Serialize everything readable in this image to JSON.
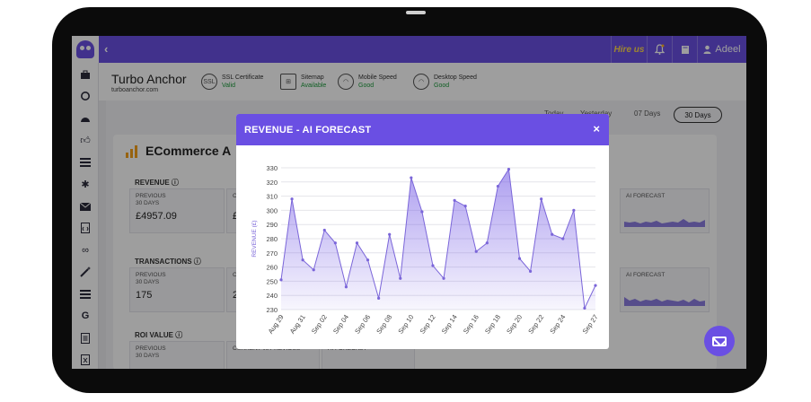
{
  "topbar": {
    "back_icon": "chevron-left",
    "hire_us": "Hire us",
    "bell_icon": "bell",
    "book_icon": "book",
    "user_icon": "user",
    "user_name": "Adeel",
    "accent": "#6a4fe3"
  },
  "sidebar": {
    "icons": [
      "briefcase-icon",
      "refresh-icon",
      "dashboard-icon",
      "thumbs-up-icon",
      "list-icon",
      "plugin-icon",
      "mail-icon",
      "code-file-icon",
      "link-icon",
      "wand-icon",
      "table-icon",
      "google-icon",
      "document-icon",
      "excel-icon"
    ]
  },
  "site": {
    "name": "Turbo Anchor",
    "url": "turboanchor.com",
    "ssl_label": "SSL Certificate",
    "ssl_status": "Valid",
    "sitemap_label": "Sitemap",
    "sitemap_status": "Available",
    "mobile_label": "Mobile Speed",
    "mobile_status": "Good",
    "desktop_label": "Desktop Speed",
    "desktop_status": "Good",
    "status_color": "#1a9a3a"
  },
  "ranges": {
    "d1": "Today",
    "d2": "Yesterday",
    "d3": "07 Days",
    "d4": "30 Days"
  },
  "dashboard": {
    "title": "ECommerce A",
    "revenue_label": "REVENUE",
    "transactions_label": "TRANSACTIONS",
    "roi_label": "ROI VALUE",
    "previous_label_1": "PREVIOUS",
    "previous_label_2": "30 DAYS",
    "current_label": "CURRENT vs PREVIOUS",
    "ai_forecast_label": "AI FORECAST",
    "revenue_previous": "£4957.09",
    "transactions_previous": "175",
    "revenue_current_partial": "£",
    "transactions_current_partial": "2"
  },
  "modal": {
    "title": "REVENUE - AI FORECAST",
    "close": "×"
  },
  "chart_data": {
    "type": "area",
    "title": "",
    "xlabel": "",
    "ylabel": "REVENUE (£)",
    "ylim": [
      230,
      330
    ],
    "yticks": [
      230,
      240,
      250,
      260,
      270,
      280,
      290,
      300,
      310,
      320,
      330
    ],
    "grid": true,
    "tick_labels": [
      "Aug 29",
      "Aug 31",
      "Sep 02",
      "Sep 04",
      "Sep 06",
      "Sep 08",
      "Sep 10",
      "Sep 12",
      "Sep 14",
      "Sep 16",
      "Sep 18",
      "Sep 20",
      "Sep 22",
      "Sep 24",
      "Sep 27"
    ],
    "x": [
      "Aug 29",
      "Aug 30",
      "Aug 31",
      "Sep 01",
      "Sep 02",
      "Sep 03",
      "Sep 04",
      "Sep 05",
      "Sep 06",
      "Sep 07",
      "Sep 08",
      "Sep 09",
      "Sep 10",
      "Sep 11",
      "Sep 12",
      "Sep 13",
      "Sep 14",
      "Sep 15",
      "Sep 16",
      "Sep 17",
      "Sep 18",
      "Sep 19",
      "Sep 20",
      "Sep 21",
      "Sep 22",
      "Sep 23",
      "Sep 24",
      "Sep 25",
      "Sep 26",
      "Sep 27"
    ],
    "values": [
      251,
      308,
      265,
      258,
      286,
      277,
      246,
      277,
      265,
      238,
      283,
      252,
      323,
      299,
      261,
      252,
      307,
      303,
      271,
      277,
      317,
      329,
      266,
      257,
      308,
      283,
      280,
      300,
      231,
      247
    ],
    "line_color": "#7b66d9",
    "fill_color": "#6a4fe3"
  }
}
